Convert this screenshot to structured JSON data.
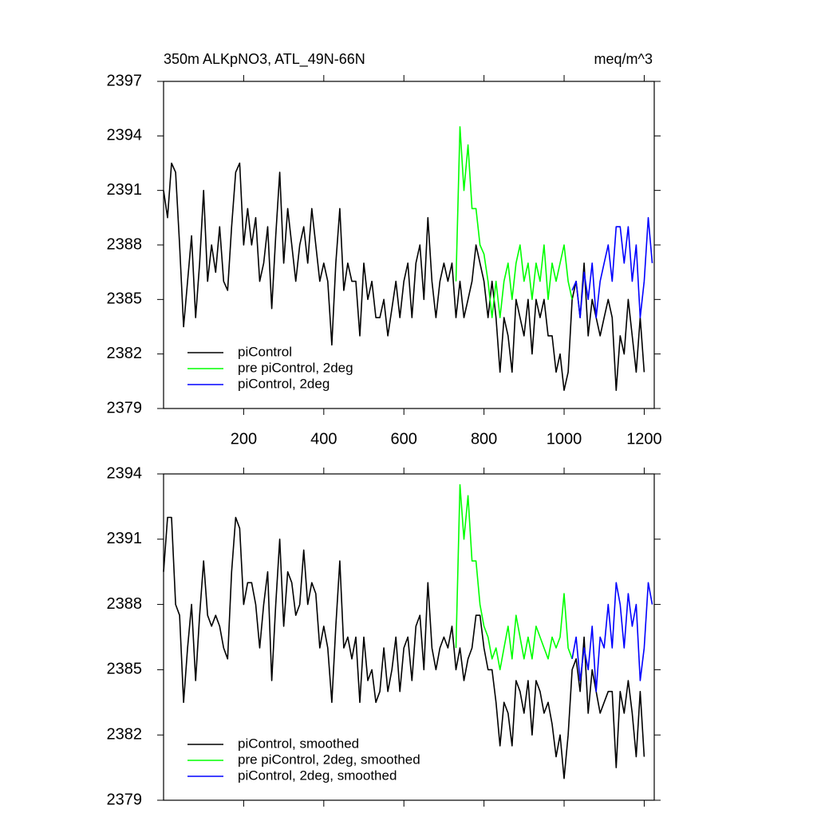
{
  "chart_data": [
    {
      "type": "line",
      "title": "350m ALKpNO3, ATL_49N-66N",
      "units": "meq/m^3",
      "xlim": [
        0,
        1225
      ],
      "xticks": [
        200,
        400,
        600,
        800,
        1000,
        1200
      ],
      "ylim": [
        2379,
        2397
      ],
      "yticks": [
        2379,
        2382,
        2385,
        2388,
        2391,
        2394,
        2397
      ],
      "legend": "lower left",
      "series": [
        {
          "name": "piControl",
          "color": "#000000",
          "x": [
            0,
            10,
            20,
            30,
            40,
            50,
            60,
            70,
            80,
            90,
            100,
            110,
            120,
            130,
            140,
            150,
            160,
            170,
            180,
            190,
            200,
            210,
            220,
            230,
            240,
            250,
            260,
            270,
            280,
            290,
            300,
            310,
            320,
            330,
            340,
            350,
            360,
            370,
            380,
            390,
            400,
            410,
            420,
            430,
            440,
            450,
            460,
            470,
            480,
            490,
            500,
            510,
            520,
            530,
            540,
            550,
            560,
            570,
            580,
            590,
            600,
            610,
            620,
            630,
            640,
            650,
            660,
            670,
            680,
            690,
            700,
            710,
            720,
            730,
            740,
            750,
            760,
            770,
            780,
            790,
            800,
            810,
            820,
            830,
            840,
            850,
            860,
            870,
            880,
            890,
            900,
            910,
            920,
            930,
            940,
            950,
            960,
            970,
            980,
            990,
            1000,
            1010,
            1020,
            1030,
            1040,
            1050,
            1060,
            1070,
            1080,
            1090,
            1100,
            1110,
            1120,
            1130,
            1140,
            1150,
            1160,
            1170,
            1180,
            1190,
            1200
          ],
          "values": [
            2391,
            2389.5,
            2392.5,
            2392,
            2388,
            2383.5,
            2386,
            2388.5,
            2384,
            2387,
            2391,
            2386,
            2388,
            2386.5,
            2389,
            2386,
            2385.5,
            2389,
            2392,
            2392.5,
            2388,
            2390,
            2388,
            2389.5,
            2386,
            2387,
            2389,
            2384.5,
            2388.5,
            2392,
            2387,
            2390,
            2388,
            2386,
            2388,
            2389,
            2387,
            2390,
            2388,
            2386,
            2387,
            2386,
            2382.5,
            2387,
            2390,
            2385.5,
            2387,
            2386,
            2386,
            2383,
            2387,
            2385,
            2386,
            2384,
            2384,
            2385,
            2383,
            2384.5,
            2386,
            2384,
            2386,
            2387,
            2384,
            2387,
            2388,
            2385,
            2389.5,
            2386,
            2384,
            2386,
            2387,
            2386,
            2387,
            2384,
            2386,
            2384,
            2385,
            2386,
            2388,
            2387,
            2386,
            2384,
            2386,
            2384,
            2381,
            2384,
            2383,
            2381,
            2385,
            2384,
            2383,
            2385,
            2382,
            2385,
            2384,
            2385,
            2383,
            2383,
            2381,
            2382,
            2380,
            2381,
            2385,
            2386,
            2384,
            2387,
            2383,
            2385,
            2384,
            2383,
            2384,
            2385,
            2384,
            2380,
            2383,
            2382,
            2385,
            2383,
            2381,
            2384,
            2381
          ]
        },
        {
          "name": "pre piControl, 2deg",
          "color": "#00ff00",
          "x": [
            730,
            740,
            750,
            760,
            770,
            780,
            790,
            800,
            810,
            820,
            830,
            840,
            850,
            860,
            870,
            880,
            890,
            900,
            910,
            920,
            930,
            940,
            950,
            960,
            970,
            980,
            990,
            1000,
            1010,
            1020
          ],
          "values": [
            2386,
            2394.5,
            2391,
            2393.5,
            2390,
            2390,
            2388,
            2387.5,
            2386,
            2384,
            2386,
            2384,
            2386,
            2387,
            2385,
            2387,
            2388,
            2386,
            2387,
            2385,
            2387,
            2386,
            2388,
            2385,
            2387,
            2386,
            2387,
            2388,
            2386,
            2385
          ]
        },
        {
          "name": "piControl, 2deg",
          "color": "#0000ff",
          "x": [
            1020,
            1030,
            1040,
            1050,
            1060,
            1070,
            1080,
            1090,
            1100,
            1110,
            1120,
            1130,
            1140,
            1150,
            1160,
            1170,
            1180,
            1190,
            1200,
            1210,
            1220
          ],
          "values": [
            2385.5,
            2386,
            2384,
            2386.5,
            2385,
            2387,
            2384,
            2386,
            2387,
            2388,
            2386,
            2389,
            2389,
            2387,
            2389,
            2386,
            2388,
            2384,
            2386,
            2389.5,
            2387
          ]
        }
      ]
    },
    {
      "type": "line",
      "xlim": [
        0,
        1225
      ],
      "xticks": [
        200,
        400,
        600,
        800,
        1000,
        1200
      ],
      "xtick_labels": false,
      "ylim": [
        2379,
        2394
      ],
      "yticks": [
        2379,
        2382,
        2385,
        2388,
        2391,
        2394
      ],
      "legend": "lower left",
      "series": [
        {
          "name": "piControl, smoothed",
          "color": "#000000",
          "x": [
            0,
            10,
            20,
            30,
            40,
            50,
            60,
            70,
            80,
            90,
            100,
            110,
            120,
            130,
            140,
            150,
            160,
            170,
            180,
            190,
            200,
            210,
            220,
            230,
            240,
            250,
            260,
            270,
            280,
            290,
            300,
            310,
            320,
            330,
            340,
            350,
            360,
            370,
            380,
            390,
            400,
            410,
            420,
            430,
            440,
            450,
            460,
            470,
            480,
            490,
            500,
            510,
            520,
            530,
            540,
            550,
            560,
            570,
            580,
            590,
            600,
            610,
            620,
            630,
            640,
            650,
            660,
            670,
            680,
            690,
            700,
            710,
            720,
            730,
            740,
            750,
            760,
            770,
            780,
            790,
            800,
            810,
            820,
            830,
            840,
            850,
            860,
            870,
            880,
            890,
            900,
            910,
            920,
            930,
            940,
            950,
            960,
            970,
            980,
            990,
            1000,
            1010,
            1020,
            1030,
            1040,
            1050,
            1060,
            1070,
            1080,
            1090,
            1100,
            1110,
            1120,
            1130,
            1140,
            1150,
            1160,
            1170,
            1180,
            1190,
            1200
          ],
          "values": [
            2389.5,
            2392,
            2392,
            2388,
            2387.5,
            2383.5,
            2386,
            2388,
            2384.5,
            2387.5,
            2390,
            2387.5,
            2387,
            2387.5,
            2387,
            2386,
            2385.5,
            2389.5,
            2392,
            2391.5,
            2388,
            2389,
            2389,
            2388,
            2386,
            2388,
            2389.5,
            2384.5,
            2388,
            2391,
            2387,
            2389.5,
            2389,
            2387.5,
            2388,
            2390.5,
            2388,
            2389,
            2388.5,
            2386,
            2387,
            2386,
            2383.5,
            2387,
            2390,
            2386,
            2386.5,
            2385.5,
            2386.5,
            2383.5,
            2386.5,
            2384.5,
            2385,
            2383.5,
            2384,
            2386,
            2384,
            2385,
            2386.5,
            2384,
            2386,
            2386.5,
            2384.5,
            2387,
            2387.5,
            2385,
            2389,
            2386,
            2385,
            2386,
            2386.5,
            2386,
            2387,
            2385,
            2386,
            2384.5,
            2385.5,
            2386,
            2387.5,
            2387.5,
            2386,
            2385,
            2385,
            2383.5,
            2381.5,
            2383.5,
            2383,
            2381.5,
            2384.5,
            2384,
            2383,
            2384.5,
            2382,
            2384.5,
            2384,
            2383,
            2383.5,
            2382.5,
            2381,
            2382,
            2380,
            2382,
            2385,
            2385.5,
            2384,
            2386.5,
            2383,
            2385,
            2384,
            2383,
            2383.5,
            2384,
            2384,
            2380.5,
            2384,
            2383,
            2384.5,
            2383,
            2381,
            2384,
            2381
          ]
        },
        {
          "name": "pre piControl, 2deg, smoothed",
          "color": "#00ff00",
          "x": [
            730,
            740,
            750,
            760,
            770,
            780,
            790,
            800,
            810,
            820,
            830,
            840,
            850,
            860,
            870,
            880,
            890,
            900,
            910,
            920,
            930,
            940,
            950,
            960,
            970,
            980,
            990,
            1000,
            1010,
            1020
          ],
          "values": [
            2386,
            2393.5,
            2391,
            2393,
            2390,
            2390,
            2388,
            2387,
            2386.5,
            2385.5,
            2386,
            2385,
            2386,
            2387,
            2385.5,
            2387.5,
            2386.5,
            2385.5,
            2386.5,
            2385.5,
            2387,
            2386.5,
            2386,
            2385.5,
            2386.5,
            2386,
            2386.5,
            2388.5,
            2386,
            2385.5
          ]
        },
        {
          "name": "piControl, 2deg, smoothed",
          "color": "#0000ff",
          "x": [
            1020,
            1030,
            1040,
            1050,
            1060,
            1070,
            1080,
            1090,
            1100,
            1110,
            1120,
            1130,
            1140,
            1150,
            1160,
            1170,
            1180,
            1190,
            1200,
            1210,
            1220
          ],
          "values": [
            2385.5,
            2386.5,
            2384.5,
            2386,
            2385,
            2387,
            2384,
            2386.5,
            2386,
            2388,
            2386,
            2389,
            2388,
            2386,
            2388.5,
            2387,
            2388,
            2384.5,
            2386,
            2389,
            2388
          ]
        }
      ]
    }
  ]
}
